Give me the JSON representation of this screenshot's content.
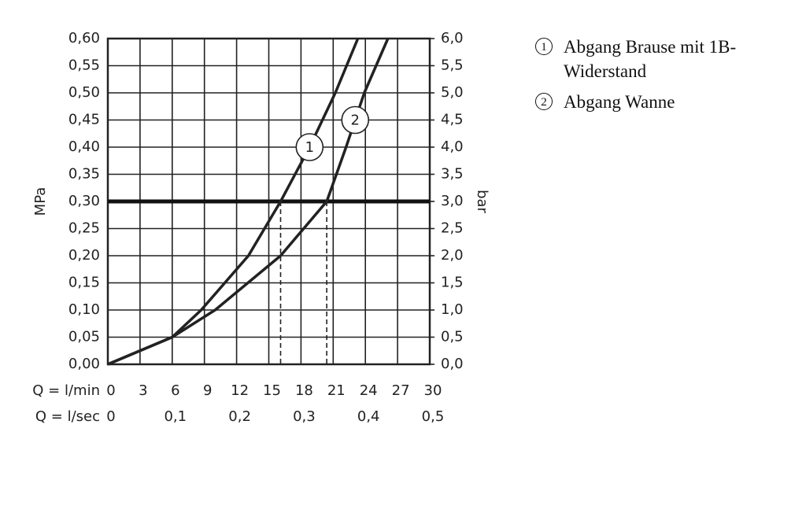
{
  "chart_data": {
    "type": "line",
    "x_label": "Q = l/min",
    "x2_label": "Q = l/sec",
    "y_label": "MPa",
    "y2_label": "bar",
    "xlim": [
      0,
      30
    ],
    "xticks": [
      0,
      3,
      6,
      9,
      12,
      15,
      18,
      21,
      24,
      27,
      30
    ],
    "x2lim": [
      0,
      0.5
    ],
    "x2ticks": [
      0,
      {
        "value": 0.1,
        "label": "0,1"
      },
      {
        "value": 0.2,
        "label": "0,2"
      },
      {
        "value": 0.3,
        "label": "0,3"
      },
      {
        "value": 0.4,
        "label": "0,4"
      },
      {
        "value": 0.5,
        "label": "0,5"
      }
    ],
    "ylim": [
      0,
      0.6
    ],
    "yticks": [
      {
        "value": 0,
        "label": "0,00"
      },
      {
        "value": 0.05,
        "label": "0,05"
      },
      {
        "value": 0.1,
        "label": "0,10"
      },
      {
        "value": 0.15,
        "label": "0,15"
      },
      {
        "value": 0.2,
        "label": "0,20"
      },
      {
        "value": 0.25,
        "label": "0,25"
      },
      {
        "value": 0.3,
        "label": "0,30"
      },
      {
        "value": 0.35,
        "label": "0,35"
      },
      {
        "value": 0.4,
        "label": "0,40"
      },
      {
        "value": 0.45,
        "label": "0,45"
      },
      {
        "value": 0.5,
        "label": "0,50"
      },
      {
        "value": 0.55,
        "label": "0,55"
      },
      {
        "value": 0.6,
        "label": "0,60"
      }
    ],
    "y2lim": [
      0,
      6
    ],
    "y2ticks": [
      {
        "value": 0,
        "label": "0,0"
      },
      {
        "value": 0.5,
        "label": "0,5"
      },
      {
        "value": 1,
        "label": "1,0"
      },
      {
        "value": 1.5,
        "label": "1,5"
      },
      {
        "value": 2,
        "label": "2,0"
      },
      {
        "value": 2.5,
        "label": "2,5"
      },
      {
        "value": 3,
        "label": "3,0"
      },
      {
        "value": 3.5,
        "label": "3,5"
      },
      {
        "value": 4,
        "label": "4,0"
      },
      {
        "value": 4.5,
        "label": "4,5"
      },
      {
        "value": 5,
        "label": "5,0"
      },
      {
        "value": 5.5,
        "label": "5,5"
      },
      {
        "value": 6,
        "label": "6,0"
      }
    ],
    "grid": true,
    "hline": 0.3,
    "series": [
      {
        "name": "Abgang Brause mit 1B-Widerstand",
        "label": "1",
        "color": "#222222",
        "x": [
          0,
          6,
          8.7,
          13.1,
          16.1,
          18.8,
          21.2,
          23.3
        ],
        "values": [
          0,
          0.05,
          0.1,
          0.2,
          0.3,
          0.4,
          0.5,
          0.6
        ]
      },
      {
        "name": "Abgang Wanne",
        "label": "2",
        "color": "#222222",
        "x": [
          0,
          6,
          10,
          16.1,
          20.4,
          22.2,
          23.9,
          26.1
        ],
        "values": [
          0,
          0.05,
          0.1,
          0.2,
          0.3,
          0.4,
          0.5,
          0.6
        ]
      }
    ]
  }
}
